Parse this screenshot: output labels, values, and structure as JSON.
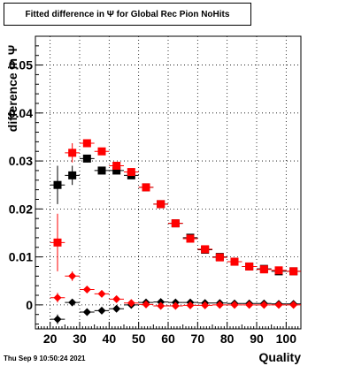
{
  "title": "Fitted difference in  Ψ  for Global Rec Pion NoHits",
  "timestamp": "Thu Sep  9 10:50:24 2021",
  "chart_data": {
    "type": "scatter",
    "title": "Fitted difference in  Ψ  for Global Rec Pion NoHits",
    "xlabel": "Quality",
    "ylabel": "difference in  Ψ",
    "xlim": [
      15,
      105
    ],
    "ylim": [
      -0.005,
      0.056
    ],
    "grid": true,
    "x_ticks": [
      20,
      30,
      40,
      50,
      60,
      70,
      80,
      90,
      100
    ],
    "x_tick_labels": [
      "20",
      "30",
      "40",
      "50",
      "60",
      "70",
      "80",
      "90",
      "100"
    ],
    "y_ticks": [
      0,
      0.01,
      0.02,
      0.03,
      0.04,
      0.05
    ],
    "y_tick_labels": [
      "0",
      "0.01",
      "0.02",
      "0.03",
      "0.04",
      "0.05"
    ],
    "series": [
      {
        "marker": "square",
        "color": "#000000",
        "x": [
          22.5,
          27.5,
          32.5,
          37.5,
          42.5,
          47.5,
          52.5,
          57.5,
          62.5,
          67.5,
          72.5,
          77.5,
          82.5,
          87.5,
          92.5,
          97.5,
          102.5
        ],
        "y": [
          0.025,
          0.027,
          0.0305,
          0.028,
          0.028,
          0.027,
          0.0245,
          0.021,
          0.017,
          0.014,
          0.0115,
          0.01,
          0.009,
          0.008,
          0.0075,
          0.007,
          0.007
        ],
        "yerr": [
          0.004,
          0.002,
          0.0008,
          0.0005,
          0.0004,
          0.0003,
          0.0003,
          0.0003,
          0.0003,
          0.0003,
          0.0003,
          0.0003,
          0.0003,
          0.0003,
          0.0003,
          0.0003,
          0.0003
        ]
      },
      {
        "marker": "square",
        "color": "#ff0000",
        "x": [
          22.5,
          27.5,
          32.5,
          37.5,
          42.5,
          47.5,
          52.5,
          57.5,
          62.5,
          67.5,
          72.5,
          77.5,
          82.5,
          87.5,
          92.5,
          97.5,
          102.5
        ],
        "y": [
          0.013,
          0.0317,
          0.0337,
          0.032,
          0.029,
          0.0277,
          0.0245,
          0.021,
          0.017,
          0.0138,
          0.0116,
          0.0099,
          0.009,
          0.008,
          0.0074,
          0.0072,
          0.007
        ],
        "yerr": [
          0.006,
          0.002,
          0.0008,
          0.0005,
          0.0004,
          0.0003,
          0.0003,
          0.0003,
          0.0003,
          0.0003,
          0.0003,
          0.0003,
          0.0003,
          0.0003,
          0.0003,
          0.0003,
          0.0003
        ]
      },
      {
        "marker": "diamond",
        "color": "#000000",
        "x": [
          22.5,
          27.5,
          32.5,
          37.5,
          42.5,
          47.5,
          52.5,
          57.5,
          62.5,
          67.5,
          72.5,
          77.5,
          82.5,
          87.5,
          92.5,
          97.5,
          102.5
        ],
        "y": [
          -0.003,
          0.0005,
          -0.0015,
          -0.0012,
          -0.0008,
          0.0,
          0.0005,
          0.0006,
          0.0005,
          0.0005,
          0.0004,
          0.0004,
          0.0003,
          0.0003,
          0.0003,
          0.0002,
          0.0002
        ],
        "yerr": [
          0.001,
          0.0004,
          0.0003,
          0.0002,
          0.0002,
          0.0002,
          0.0001,
          0.0001,
          0.0001,
          0.0001,
          0.0001,
          0.0001,
          0.0001,
          0.0001,
          0.0001,
          0.0001,
          0.0001
        ]
      },
      {
        "marker": "diamond",
        "color": "#ff0000",
        "x": [
          22.5,
          27.5,
          32.5,
          37.5,
          42.5,
          47.5,
          52.5,
          57.5,
          62.5,
          67.5,
          72.5,
          77.5,
          82.5,
          87.5,
          92.5,
          97.5,
          102.5
        ],
        "y": [
          0.0015,
          0.006,
          0.0032,
          0.0023,
          0.0012,
          0.0004,
          0.0001,
          -0.0002,
          -0.0002,
          -0.0001,
          -0.0001,
          0.0,
          0.0,
          0.0,
          0.0,
          0.0,
          0.0
        ],
        "yerr": [
          0.001,
          0.001,
          0.0004,
          0.0003,
          0.0002,
          0.0002,
          0.0001,
          0.0001,
          0.0001,
          0.0001,
          0.0001,
          0.0001,
          0.0001,
          0.0001,
          0.0001,
          0.0001,
          0.0001
        ]
      }
    ]
  }
}
